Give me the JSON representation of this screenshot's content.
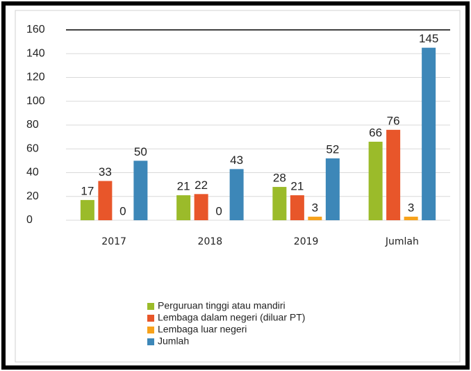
{
  "chart_data": {
    "type": "bar",
    "categories": [
      "2017",
      "2018",
      "2019",
      "Jumlah"
    ],
    "series": [
      {
        "name": "Perguruan tinggi atau mandiri",
        "color": "#9bbb2a",
        "values": [
          17,
          21,
          28,
          66
        ]
      },
      {
        "name": "Lembaga dalam negeri (diluar PT)",
        "color": "#e8562a",
        "values": [
          33,
          22,
          21,
          76
        ]
      },
      {
        "name": "Lembaga luar negeri",
        "color": "#f7a21b",
        "values": [
          0,
          0,
          3,
          3
        ]
      },
      {
        "name": "Jumlah",
        "color": "#3d87b8",
        "values": [
          50,
          43,
          52,
          145
        ]
      }
    ],
    "ylim": [
      0,
      160
    ],
    "yticks": [
      0,
      20,
      40,
      60,
      80,
      100,
      120,
      140,
      160
    ],
    "grid": true
  }
}
